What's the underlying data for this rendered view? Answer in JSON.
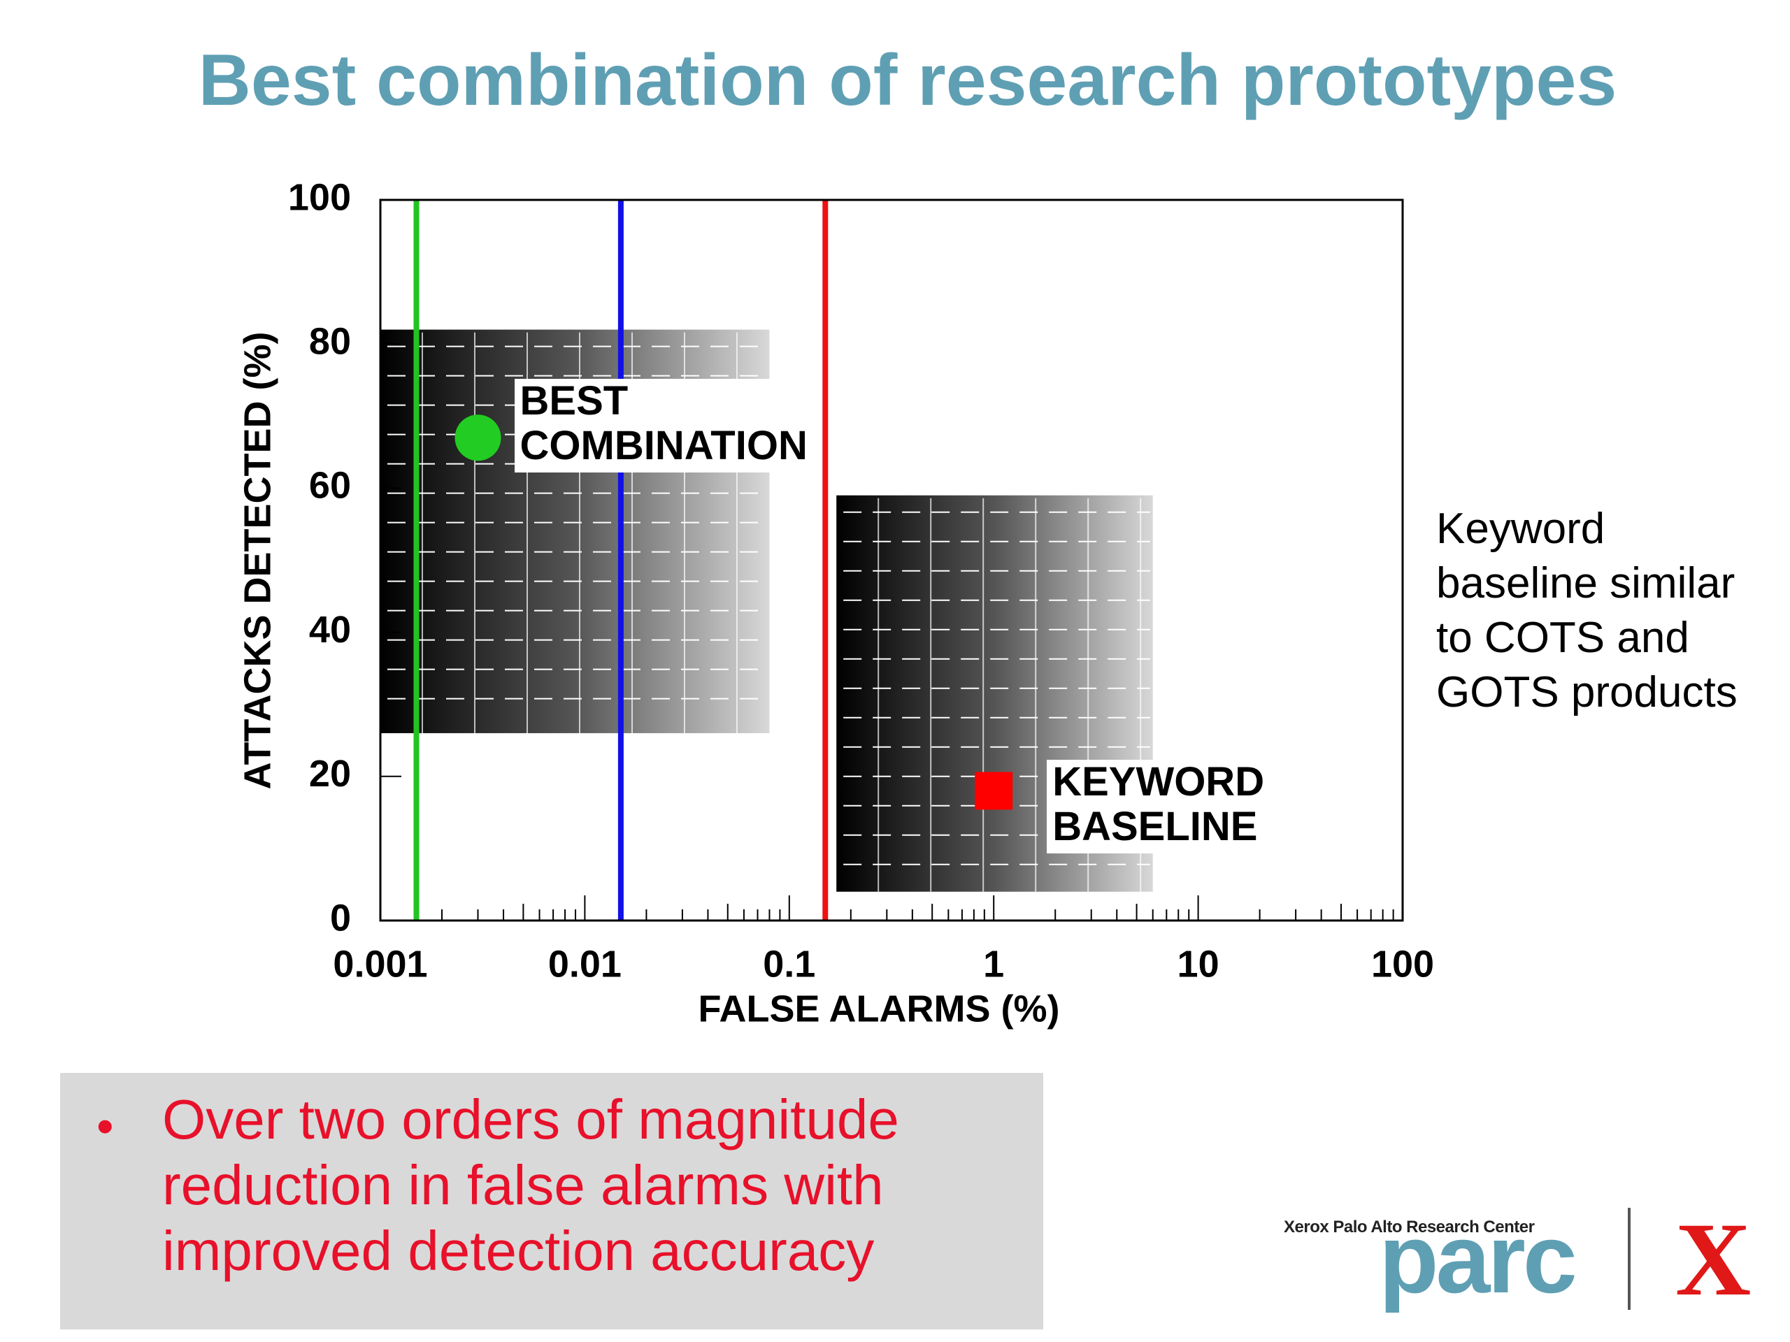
{
  "title": "Best combination of research prototypes",
  "chart_data": {
    "type": "scatter",
    "xlabel": "FALSE ALARMS (%)",
    "ylabel": "ATTACKS DETECTED (%)",
    "xscale": "log",
    "xlim": [
      0.001,
      100
    ],
    "ylim": [
      0,
      100
    ],
    "xticks": [
      0.001,
      0.01,
      0.1,
      1,
      10,
      100
    ],
    "yticks": [
      0,
      20,
      40,
      60,
      80,
      100
    ],
    "series": [
      {
        "name": "BEST COMBINATION",
        "color": "#22cc22",
        "marker": "circle",
        "x": [
          0.003
        ],
        "values": [
          67
        ]
      },
      {
        "name": "KEYWORD BASELINE",
        "color": "#ff0000",
        "marker": "square",
        "x": [
          1
        ],
        "values": [
          18
        ]
      }
    ],
    "vlines": [
      {
        "x": 0.0015,
        "color": "#22c422"
      },
      {
        "x": 0.015,
        "color": "#1010e8"
      },
      {
        "x": 0.15,
        "color": "#ee1111"
      }
    ],
    "regions": [
      {
        "xlim": [
          0.001,
          0.08
        ],
        "ylim": [
          26,
          82
        ]
      },
      {
        "xlim": [
          0.17,
          6
        ],
        "ylim": [
          4,
          59
        ]
      }
    ]
  },
  "side_note": "Keyword baseline similar to COTS and GOTS products",
  "bullet": "Over two orders of magnitude reduction in false alarms with improved detection accuracy",
  "logo": {
    "caption": "Xerox Palo Alto Research Center",
    "name": "parc",
    "mark": "X"
  }
}
